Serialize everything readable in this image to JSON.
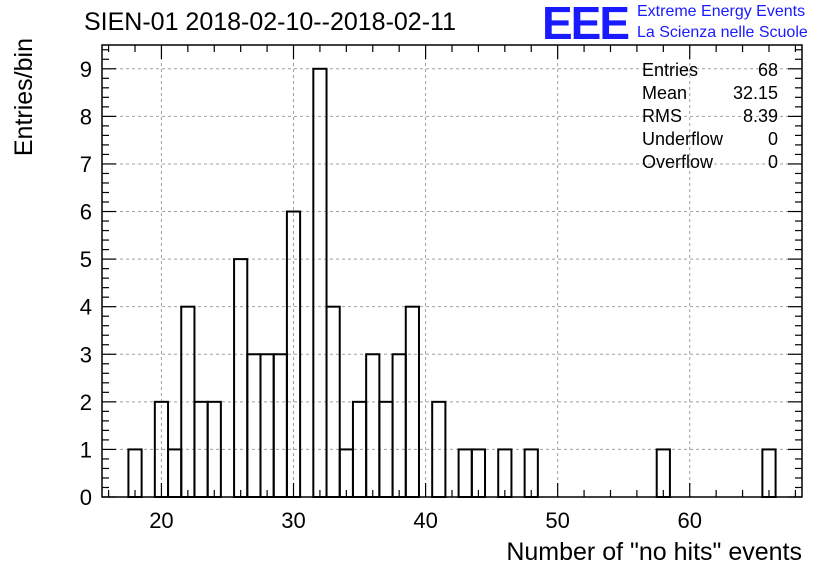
{
  "title": "SIEN-01 2018-02-10--2018-02-11",
  "logo": {
    "mark": "EEE",
    "line1": "Extreme Energy Events",
    "line2": "La Scienza nelle Scuole",
    "color": "#1a1aff"
  },
  "stats": [
    {
      "label": "Entries",
      "value": "68"
    },
    {
      "label": "Mean",
      "value": "32.15"
    },
    {
      "label": "RMS",
      "value": "8.39"
    },
    {
      "label": "Underflow",
      "value": "0"
    },
    {
      "label": "Overflow",
      "value": "0"
    }
  ],
  "chart_data": {
    "type": "bar",
    "style": "step-histogram",
    "xlabel": "Number of \"no hits\" events",
    "ylabel": "Entries/bin",
    "xlim": [
      15.5,
      68.5
    ],
    "ylim": [
      0,
      9.5
    ],
    "bin_width": 1,
    "grid": true,
    "x_ticks": [
      20,
      30,
      40,
      50,
      60
    ],
    "y_ticks": [
      0,
      1,
      2,
      3,
      4,
      5,
      6,
      7,
      8,
      9
    ],
    "x": [
      18,
      20,
      21,
      22,
      23,
      24,
      26,
      27,
      28,
      29,
      30,
      32,
      33,
      34,
      35,
      36,
      37,
      38,
      39,
      41,
      43,
      44,
      46,
      48,
      58,
      66
    ],
    "values": [
      1,
      2,
      1,
      4,
      2,
      2,
      5,
      3,
      3,
      3,
      6,
      9,
      4,
      1,
      2,
      3,
      2,
      3,
      4,
      2,
      1,
      1,
      1,
      1,
      1,
      1
    ]
  }
}
